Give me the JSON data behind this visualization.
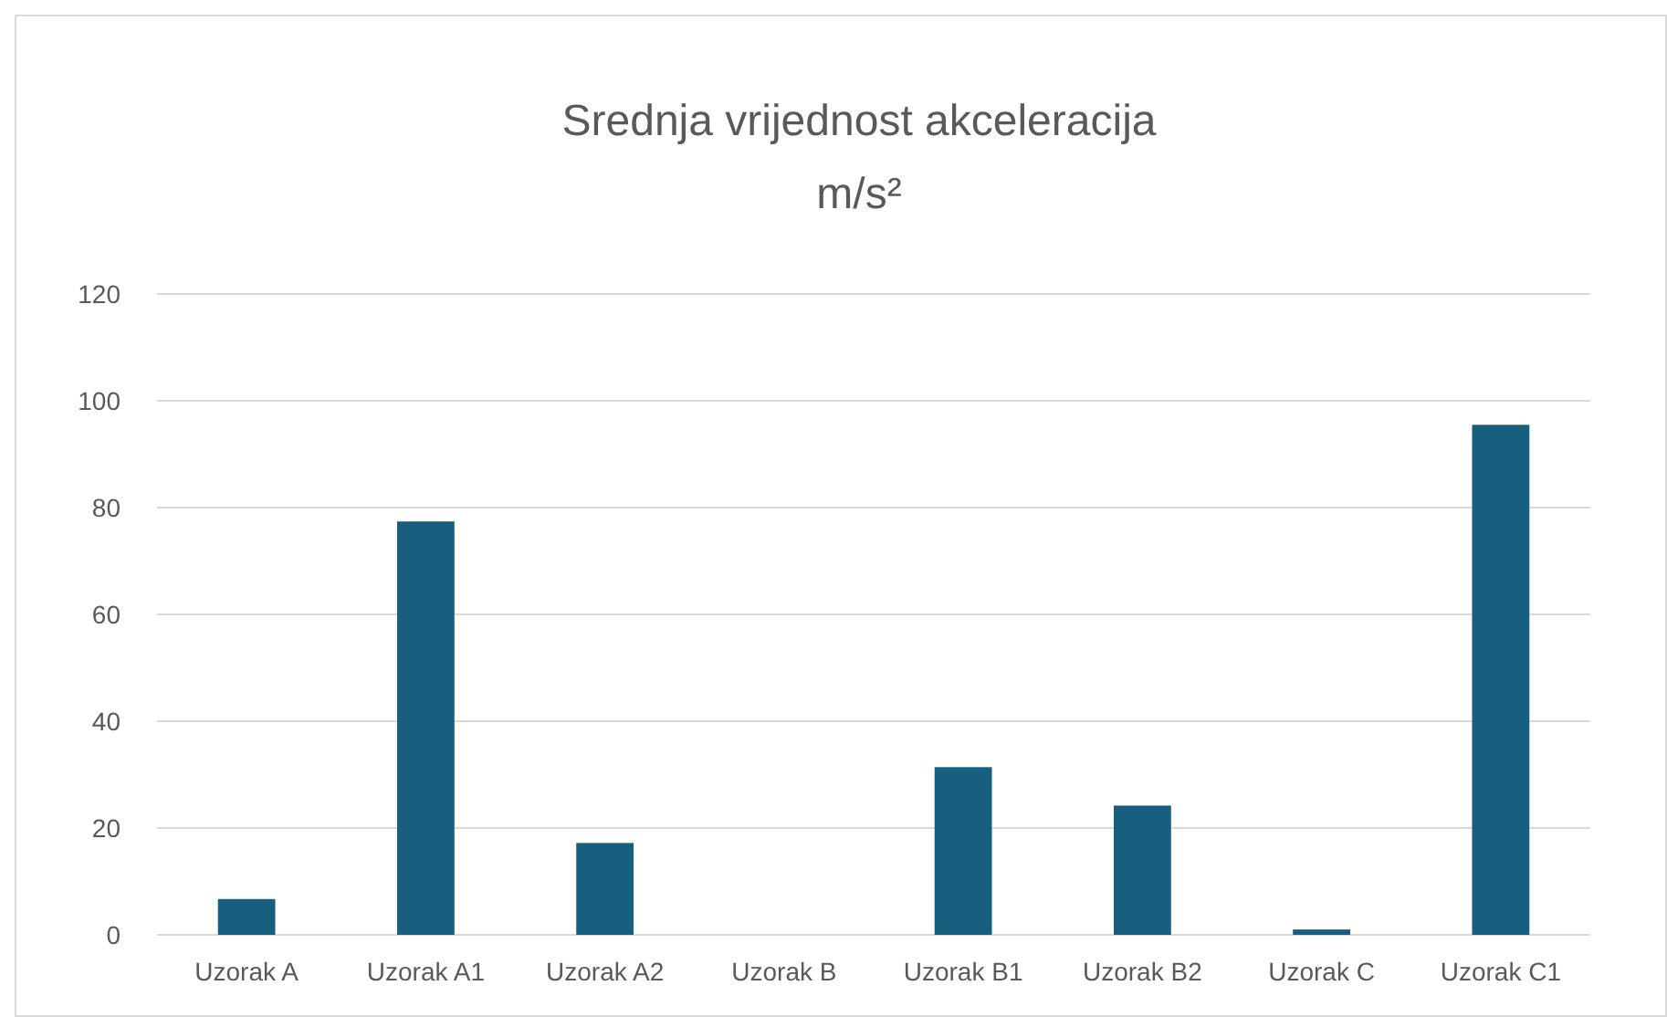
{
  "chart_data": {
    "type": "bar",
    "title": "Srednja vrijednost akceleracija",
    "subtitle": "m/s²",
    "categories": [
      "Uzorak A",
      "Uzorak A1",
      "Uzorak A2",
      "Uzorak B",
      "Uzorak B1",
      "Uzorak B2",
      "Uzorak C",
      "Uzorak C1"
    ],
    "values": [
      6.7,
      77.4,
      17.2,
      0,
      31.4,
      24.2,
      1,
      95.5
    ],
    "color": "#175e7f",
    "ylim": [
      0,
      120
    ],
    "yticks": [
      0,
      20,
      40,
      60,
      80,
      100,
      120
    ],
    "grid": "y"
  }
}
